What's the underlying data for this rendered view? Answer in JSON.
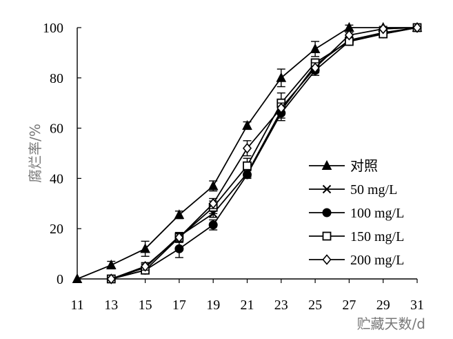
{
  "chart_data": {
    "type": "line",
    "title": "",
    "xlabel": "贮藏天数/d",
    "ylabel": "腐烂率/%",
    "xlim": [
      11,
      31
    ],
    "ylim": [
      0,
      100
    ],
    "x_ticks": [
      "11",
      "13",
      "15",
      "17",
      "19",
      "21",
      "23",
      "25",
      "27",
      "29",
      "31"
    ],
    "y_ticks": [
      "0",
      "20",
      "40",
      "60",
      "80",
      "100"
    ],
    "grid": false,
    "legend_position": "right",
    "series": [
      {
        "name": "对照",
        "marker": "triangle",
        "x": [
          11,
          13,
          15,
          17,
          19,
          21,
          23,
          25,
          27,
          29,
          31
        ],
        "y": [
          0,
          5.5,
          12,
          25.5,
          37,
          61,
          80,
          91.5,
          100,
          100,
          100
        ],
        "err": [
          0,
          1.5,
          3,
          1.5,
          2,
          1.5,
          3.5,
          3,
          1,
          0.5,
          0
        ]
      },
      {
        "name": "50 mg/L",
        "marker": "x",
        "x": [
          13,
          15,
          17,
          19,
          21,
          23,
          25,
          27,
          29,
          31
        ],
        "y": [
          0,
          4.5,
          17,
          26,
          42,
          67,
          85,
          95,
          98,
          100
        ],
        "err": [
          0,
          1.5,
          1.5,
          1.5,
          1.5,
          3,
          2,
          1,
          0.5,
          0
        ]
      },
      {
        "name": "100 mg/L",
        "marker": "circle",
        "x": [
          13,
          15,
          17,
          19,
          21,
          23,
          25,
          27,
          29,
          31
        ],
        "y": [
          0,
          3.5,
          12,
          21.5,
          41.5,
          66,
          83,
          94.5,
          97.5,
          100
        ],
        "err": [
          0,
          1.5,
          3.5,
          2,
          1.5,
          3,
          2,
          1,
          1,
          0
        ]
      },
      {
        "name": "150 mg/L",
        "marker": "square",
        "x": [
          13,
          15,
          17,
          19,
          21,
          23,
          25,
          27,
          29,
          31
        ],
        "y": [
          0,
          3.5,
          16.5,
          28.5,
          45,
          70,
          86,
          94.5,
          97.5,
          100
        ],
        "err": [
          0,
          1.5,
          2,
          2.5,
          3,
          4,
          1.5,
          1,
          1,
          0
        ]
      },
      {
        "name": "200 mg/L",
        "marker": "diamond",
        "x": [
          13,
          15,
          17,
          19,
          21,
          23,
          25,
          27,
          29,
          31
        ],
        "y": [
          0,
          5,
          16.5,
          30,
          52,
          68,
          84,
          97,
          99.5,
          100
        ],
        "err": [
          0,
          1.5,
          1.5,
          2,
          3,
          2,
          2,
          1,
          0.5,
          0
        ]
      }
    ],
    "colors": {
      "line": "#000000",
      "axis": "#000000",
      "axis_title": "#777777"
    }
  }
}
